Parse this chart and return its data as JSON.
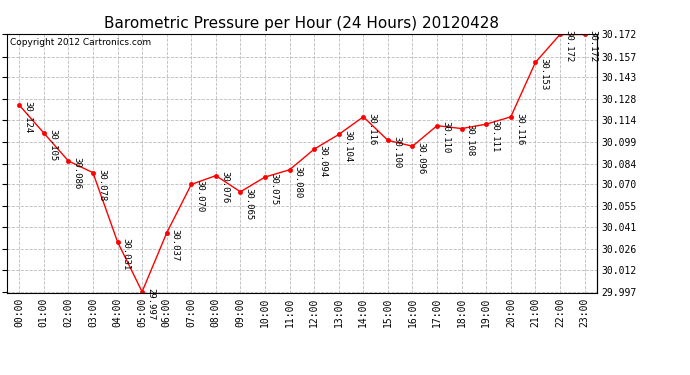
{
  "title": "Barometric Pressure per Hour (24 Hours) 20120428",
  "copyright": "Copyright 2012 Cartronics.com",
  "hours": [
    "00:00",
    "01:00",
    "02:00",
    "03:00",
    "04:00",
    "05:00",
    "06:00",
    "07:00",
    "08:00",
    "09:00",
    "10:00",
    "11:00",
    "12:00",
    "13:00",
    "14:00",
    "15:00",
    "16:00",
    "17:00",
    "18:00",
    "19:00",
    "20:00",
    "21:00",
    "22:00",
    "23:00"
  ],
  "values": [
    30.124,
    30.105,
    30.086,
    30.078,
    30.031,
    29.997,
    30.037,
    30.07,
    30.076,
    30.065,
    30.075,
    30.08,
    30.094,
    30.104,
    30.116,
    30.1,
    30.096,
    30.11,
    30.108,
    30.111,
    30.116,
    30.153,
    30.172,
    30.172
  ],
  "ylim_min": 29.997,
  "ylim_max": 30.172,
  "yticks": [
    29.997,
    30.012,
    30.026,
    30.041,
    30.055,
    30.07,
    30.084,
    30.099,
    30.114,
    30.128,
    30.143,
    30.157,
    30.172
  ],
  "line_color": "red",
  "marker_color": "red",
  "bg_color": "#ffffff",
  "grid_color": "#bbbbbb",
  "title_fontsize": 11,
  "label_fontsize": 7,
  "annotation_fontsize": 6.5,
  "copyright_fontsize": 6.5
}
